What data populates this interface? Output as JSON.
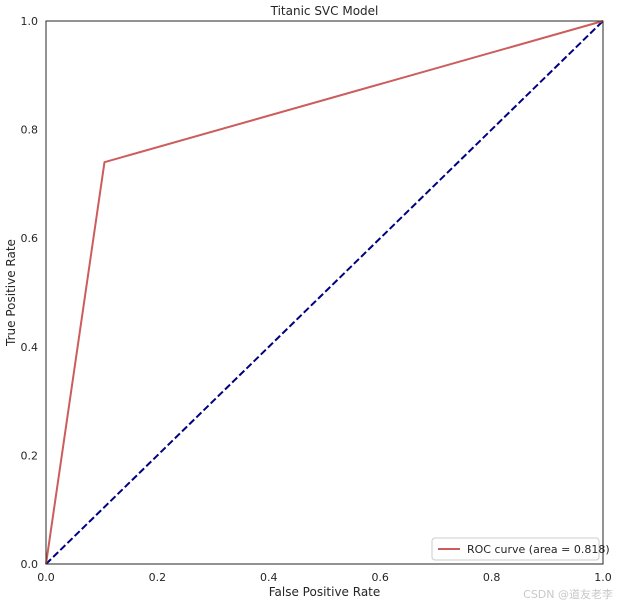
{
  "chart_data": {
    "type": "line",
    "title": "Titanic SVC Model",
    "xlabel": "False Positive Rate",
    "ylabel": "True Positive Rate",
    "xlim": [
      0,
      1
    ],
    "ylim": [
      0,
      1
    ],
    "x_ticks": [
      "0.0",
      "0.2",
      "0.4",
      "0.6",
      "0.8",
      "1.0"
    ],
    "y_ticks": [
      "0.0",
      "0.2",
      "0.4",
      "0.6",
      "0.8",
      "1.0"
    ],
    "grid": false,
    "legend_position": "lower-right",
    "series": [
      {
        "name": "ROC curve (area = 0.818)",
        "color": "#cd5c5c",
        "style": "solid",
        "x": [
          0.0,
          0.105,
          1.0
        ],
        "y": [
          0.0,
          0.74,
          1.0
        ]
      },
      {
        "color": "#000080",
        "style": "dashed",
        "x": [
          0.0,
          1.0
        ],
        "y": [
          0.0,
          1.0
        ]
      }
    ]
  },
  "watermark": "CSDN @道友老李"
}
